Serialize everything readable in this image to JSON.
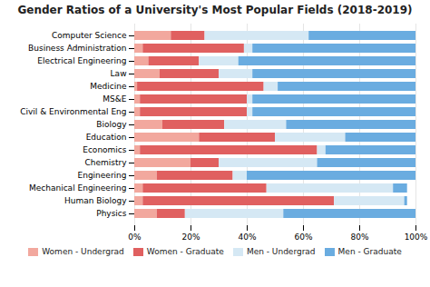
{
  "chart_data": {
    "type": "bar",
    "orientation": "horizontal",
    "stacked": true,
    "title": "Gender Ratios of a University's Most Popular Fields (2018-2019)",
    "categories": [
      "Computer Science",
      "Business Administration",
      "Electrical Engineering",
      "Law",
      "Medicine",
      "MS&E",
      "Civil & Environmental Eng",
      "Biology",
      "Education",
      "Economics",
      "Chemistry",
      "Engineering",
      "Mechanical Engineering",
      "Human Biology",
      "Physics"
    ],
    "series": [
      {
        "name": "Women - Undergrad",
        "color": "#f2a89e",
        "values": [
          13,
          3,
          5,
          9,
          1,
          2,
          2,
          10,
          23,
          2,
          20,
          8,
          3,
          3,
          8
        ]
      },
      {
        "name": "Women - Graduate",
        "color": "#e06060",
        "values": [
          12,
          36,
          18,
          21,
          45,
          38,
          38,
          22,
          27,
          63,
          10,
          27,
          44,
          68,
          10
        ]
      },
      {
        "name": "Men - Undergrad",
        "color": "#d5e8f4",
        "values": [
          37,
          3,
          14,
          12,
          5,
          2,
          2,
          22,
          25,
          3,
          35,
          5,
          45,
          25,
          35
        ]
      },
      {
        "name": "Men - Graduate",
        "color": "#6aace0",
        "values": [
          38,
          58,
          63,
          58,
          49,
          58,
          58,
          46,
          25,
          32,
          35,
          60,
          5,
          1,
          47
        ]
      }
    ],
    "xlim": [
      0,
      100
    ],
    "xticks": [
      {
        "value": 0,
        "label": "0%"
      },
      {
        "value": 20,
        "label": "20%"
      },
      {
        "value": 40,
        "label": "40%"
      },
      {
        "value": 60,
        "label": "60%"
      },
      {
        "value": 80,
        "label": "80%"
      },
      {
        "value": 100,
        "label": "100%"
      }
    ],
    "grid": true,
    "legend": "bottom"
  }
}
